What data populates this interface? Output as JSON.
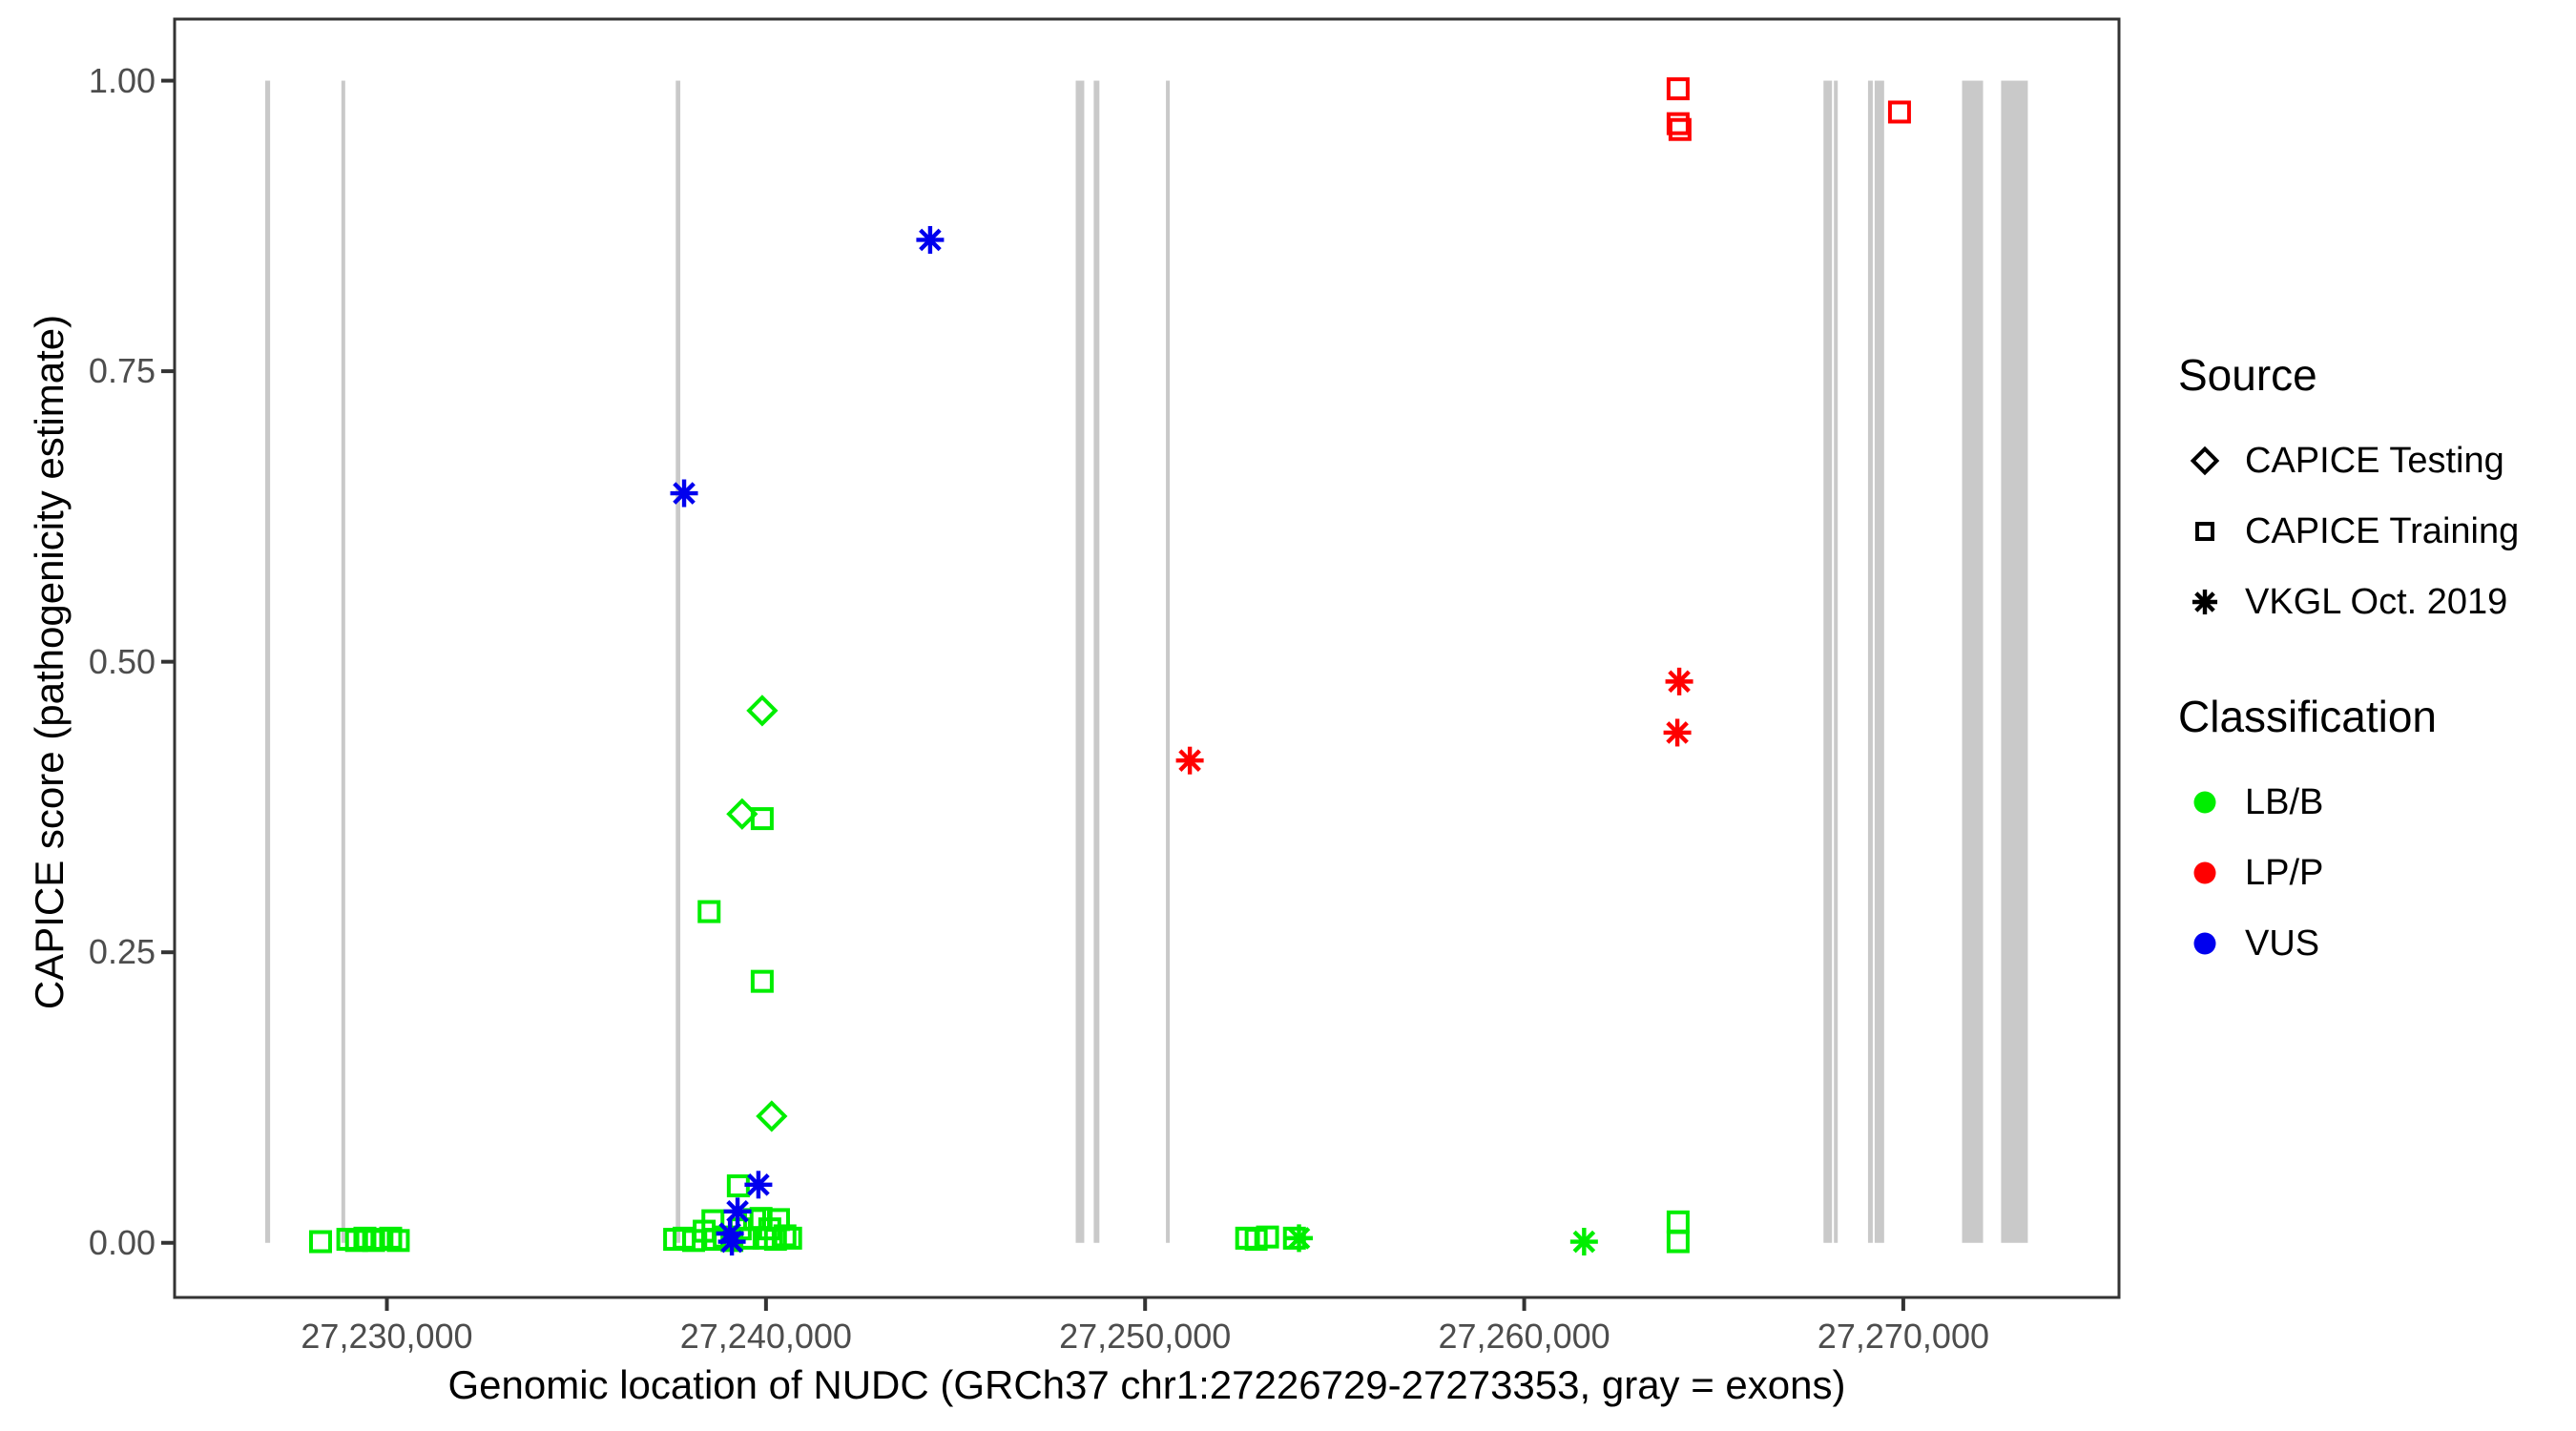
{
  "figure": {
    "x_axis": {
      "title": "Genomic location of NUDC (GRCh37 chr1:27226729-27273353, gray = exons)",
      "range": [
        27224400,
        27275690
      ],
      "ticks": [
        {
          "value": 27230000,
          "label": "27,230,000"
        },
        {
          "value": 27240000,
          "label": "27,240,000"
        },
        {
          "value": 27250000,
          "label": "27,250,000"
        },
        {
          "value": 27260000,
          "label": "27,260,000"
        },
        {
          "value": 27270000,
          "label": "27,270,000"
        }
      ]
    },
    "y_axis": {
      "title": "CAPICE score (pathogenicity estimate)",
      "range": [
        -0.047,
        1.053
      ],
      "ticks": [
        {
          "value": 0.0,
          "label": "0.00"
        },
        {
          "value": 0.25,
          "label": "0.25"
        },
        {
          "value": 0.5,
          "label": "0.50"
        },
        {
          "value": 0.75,
          "label": "0.75"
        },
        {
          "value": 1.0,
          "label": "1.00"
        }
      ]
    },
    "colors": {
      "LB/B": "#00EE00",
      "LP/P": "#FF0000",
      "VUS": "#0000EE",
      "exon": "#C9C9C9",
      "tick_text": "#4D4D4D",
      "panel_border": "#333333"
    },
    "legend": {
      "source": {
        "title": "Source",
        "items": [
          {
            "label": "CAPICE Testing",
            "shape": "diamond"
          },
          {
            "label": "CAPICE Training",
            "shape": "square"
          },
          {
            "label": "VKGL Oct. 2019",
            "shape": "asterisk"
          }
        ]
      },
      "classification": {
        "title": "Classification",
        "items": [
          {
            "label": "LB/B",
            "color": "#00EE00"
          },
          {
            "label": "LP/P",
            "color": "#FF0000"
          },
          {
            "label": "VUS",
            "color": "#0000EE"
          }
        ]
      }
    }
  },
  "chart_data": {
    "type": "scatter",
    "title": "",
    "xlabel": "Genomic location of NUDC (GRCh37 chr1:27226729-27273353, gray = exons)",
    "ylabel": "CAPICE score (pathogenicity estimate)",
    "xlim": [
      27224400,
      27275690
    ],
    "ylim": [
      -0.047,
      1.053
    ],
    "grid": false,
    "legend_position": "right",
    "shape_by_source": {
      "CAPICE Testing": "diamond",
      "CAPICE Training": "square",
      "VKGL Oct. 2019": "asterisk"
    },
    "exons": [
      [
        27226790,
        27226920
      ],
      [
        27228800,
        27228870
      ],
      [
        27237620,
        27237740
      ],
      [
        27248170,
        27248395
      ],
      [
        27248645,
        27248795
      ],
      [
        27250550,
        27250625
      ],
      [
        27267895,
        27268120
      ],
      [
        27268170,
        27268270
      ],
      [
        27269070,
        27269195
      ],
      [
        27269245,
        27269495
      ],
      [
        27271550,
        27272105
      ],
      [
        27272580,
        27273285
      ]
    ],
    "points": [
      {
        "x": 27228250,
        "y": 0.001,
        "source": "CAPICE Training",
        "classification": "LB/B"
      },
      {
        "x": 27228970,
        "y": 0.003,
        "source": "CAPICE Training",
        "classification": "LB/B"
      },
      {
        "x": 27229200,
        "y": 0.002,
        "source": "CAPICE Training",
        "classification": "LB/B"
      },
      {
        "x": 27229420,
        "y": 0.004,
        "source": "CAPICE Training",
        "classification": "LB/B"
      },
      {
        "x": 27229650,
        "y": 0.002,
        "source": "CAPICE Training",
        "classification": "LB/B"
      },
      {
        "x": 27229870,
        "y": 0.003,
        "source": "CAPICE Training",
        "classification": "LB/B"
      },
      {
        "x": 27230100,
        "y": 0.004,
        "source": "CAPICE Training",
        "classification": "LB/B"
      },
      {
        "x": 27230300,
        "y": 0.002,
        "source": "CAPICE Training",
        "classification": "LB/B"
      },
      {
        "x": 27237590,
        "y": 0.003,
        "source": "CAPICE Training",
        "classification": "LB/B"
      },
      {
        "x": 27237840,
        "y": 0.004,
        "source": "CAPICE Training",
        "classification": "LB/B"
      },
      {
        "x": 27238090,
        "y": 0.002,
        "source": "CAPICE Training",
        "classification": "LB/B"
      },
      {
        "x": 27238370,
        "y": 0.01,
        "source": "CAPICE Training",
        "classification": "LB/B"
      },
      {
        "x": 27238500,
        "y": 0.285,
        "source": "CAPICE Training",
        "classification": "LB/B"
      },
      {
        "x": 27238600,
        "y": 0.019,
        "source": "CAPICE Training",
        "classification": "LB/B"
      },
      {
        "x": 27238650,
        "y": 0.003,
        "source": "CAPICE Training",
        "classification": "LB/B"
      },
      {
        "x": 27238900,
        "y": 0.005,
        "source": "CAPICE Training",
        "classification": "LB/B"
      },
      {
        "x": 27239100,
        "y": 0.002,
        "source": "CAPICE Training",
        "classification": "LB/B"
      },
      {
        "x": 27239270,
        "y": 0.049,
        "source": "CAPICE Training",
        "classification": "LB/B"
      },
      {
        "x": 27239320,
        "y": 0.012,
        "source": "CAPICE Training",
        "classification": "LB/B"
      },
      {
        "x": 27239520,
        "y": 0.004,
        "source": "CAPICE Training",
        "classification": "LB/B"
      },
      {
        "x": 27239700,
        "y": 0.02,
        "source": "CAPICE Training",
        "classification": "LB/B"
      },
      {
        "x": 27239870,
        "y": 0.021,
        "source": "CAPICE Training",
        "classification": "LB/B"
      },
      {
        "x": 27239900,
        "y": 0.365,
        "source": "CAPICE Training",
        "classification": "LB/B"
      },
      {
        "x": 27239900,
        "y": 0.225,
        "source": "CAPICE Training",
        "classification": "LB/B"
      },
      {
        "x": 27239950,
        "y": 0.004,
        "source": "CAPICE Training",
        "classification": "LB/B"
      },
      {
        "x": 27240100,
        "y": 0.012,
        "source": "CAPICE Training",
        "classification": "LB/B"
      },
      {
        "x": 27240250,
        "y": 0.003,
        "source": "CAPICE Training",
        "classification": "LB/B"
      },
      {
        "x": 27240330,
        "y": 0.02,
        "source": "CAPICE Training",
        "classification": "LB/B"
      },
      {
        "x": 27240500,
        "y": 0.006,
        "source": "CAPICE Training",
        "classification": "LB/B"
      },
      {
        "x": 27240650,
        "y": 0.004,
        "source": "CAPICE Training",
        "classification": "LB/B"
      },
      {
        "x": 27252680,
        "y": 0.004,
        "source": "CAPICE Training",
        "classification": "LB/B"
      },
      {
        "x": 27252930,
        "y": 0.003,
        "source": "CAPICE Training",
        "classification": "LB/B"
      },
      {
        "x": 27253230,
        "y": 0.005,
        "source": "CAPICE Training",
        "classification": "LB/B"
      },
      {
        "x": 27253940,
        "y": 0.004,
        "source": "CAPICE Training",
        "classification": "LB/B"
      },
      {
        "x": 27264060,
        "y": 0.018,
        "source": "CAPICE Training",
        "classification": "LB/B"
      },
      {
        "x": 27264060,
        "y": 0.001,
        "source": "CAPICE Training",
        "classification": "LB/B"
      },
      {
        "x": 27239370,
        "y": 0.369,
        "source": "CAPICE Testing",
        "classification": "LB/B"
      },
      {
        "x": 27239900,
        "y": 0.458,
        "source": "CAPICE Testing",
        "classification": "LB/B"
      },
      {
        "x": 27240150,
        "y": 0.109,
        "source": "CAPICE Testing",
        "classification": "LB/B"
      },
      {
        "x": 27254060,
        "y": 0.004,
        "source": "VKGL Oct. 2019",
        "classification": "LB/B"
      },
      {
        "x": 27261580,
        "y": 0.001,
        "source": "VKGL Oct. 2019",
        "classification": "LB/B"
      },
      {
        "x": 27237840,
        "y": 0.645,
        "source": "VKGL Oct. 2019",
        "classification": "VUS"
      },
      {
        "x": 27244330,
        "y": 0.863,
        "source": "VKGL Oct. 2019",
        "classification": "VUS"
      },
      {
        "x": 27239800,
        "y": 0.05,
        "source": "VKGL Oct. 2019",
        "classification": "VUS"
      },
      {
        "x": 27239250,
        "y": 0.027,
        "source": "VKGL Oct. 2019",
        "classification": "VUS"
      },
      {
        "x": 27239050,
        "y": 0.008,
        "source": "VKGL Oct. 2019",
        "classification": "VUS"
      },
      {
        "x": 27239100,
        "y": 0.001,
        "source": "VKGL Oct. 2019",
        "classification": "VUS"
      },
      {
        "x": 27264060,
        "y": 0.993,
        "source": "CAPICE Training",
        "classification": "LP/P"
      },
      {
        "x": 27264060,
        "y": 0.963,
        "source": "CAPICE Training",
        "classification": "LP/P"
      },
      {
        "x": 27264110,
        "y": 0.958,
        "source": "CAPICE Training",
        "classification": "LP/P"
      },
      {
        "x": 27269900,
        "y": 0.973,
        "source": "CAPICE Training",
        "classification": "LP/P"
      },
      {
        "x": 27251180,
        "y": 0.415,
        "source": "VKGL Oct. 2019",
        "classification": "LP/P"
      },
      {
        "x": 27264090,
        "y": 0.483,
        "source": "VKGL Oct. 2019",
        "classification": "LP/P"
      },
      {
        "x": 27264040,
        "y": 0.439,
        "source": "VKGL Oct. 2019",
        "classification": "LP/P"
      }
    ]
  }
}
